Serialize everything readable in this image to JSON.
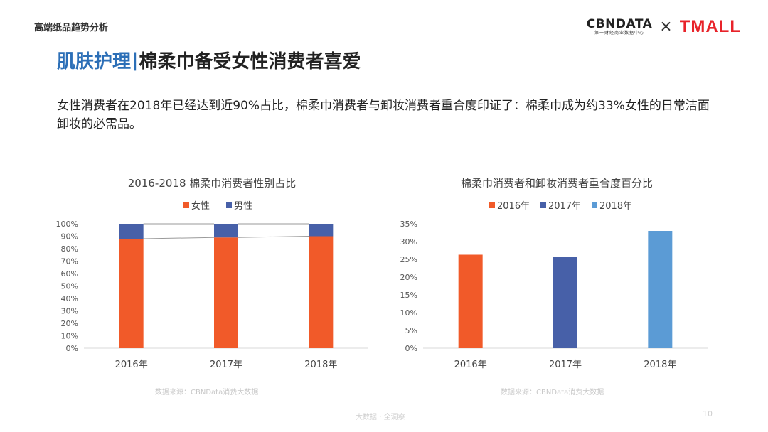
{
  "header": {
    "section": "高端纸品趋势分析",
    "logo_cbn": "CBNDATA",
    "logo_cbn_sub": "第一财经商业数据中心",
    "logo_x": "×",
    "logo_tmall": "TMALL"
  },
  "title": {
    "prefix": "肌肤护理",
    "separator": "|",
    "main": "棉柔巾备受女性消费者喜爱"
  },
  "description": "女性消费者在2018年已经达到近90%占比，棉柔巾消费者与卸妆消费者重合度印证了：棉柔巾成为约33%女性的日常洁面卸妆的必需品。",
  "colors": {
    "orange": "#f15a29",
    "blue_dark": "#4760a8",
    "blue_light": "#5b9bd5",
    "title_blue": "#2c6fb7"
  },
  "chart_data": [
    {
      "type": "bar",
      "stacked": true,
      "title": "2016-2018 棉柔巾消费者性别占比",
      "categories": [
        "2016年",
        "2017年",
        "2018年"
      ],
      "series": [
        {
          "name": "女性",
          "color": "#f15a29",
          "values": [
            88,
            89,
            90
          ]
        },
        {
          "name": "男性",
          "color": "#4760a8",
          "values": [
            12,
            11,
            10
          ]
        }
      ],
      "ylim": [
        0,
        100
      ],
      "y_ticks": [
        "0%",
        "10%",
        "20%",
        "30%",
        "40%",
        "50%",
        "60%",
        "70%",
        "80%",
        "90%",
        "100%"
      ],
      "legend": "top",
      "grid": false,
      "source": "数据来源：CBNData消费大数据"
    },
    {
      "type": "bar",
      "title": "棉柔巾消费者和卸妆消费者重合度百分比",
      "categories": [
        "2016年",
        "2017年",
        "2018年"
      ],
      "values": [
        26.3,
        25.8,
        33
      ],
      "colors": [
        "#f15a29",
        "#4760a8",
        "#5b9bd5"
      ],
      "legend_entries": [
        "2016年",
        "2017年",
        "2018年"
      ],
      "ylim": [
        0,
        35
      ],
      "y_ticks": [
        "0%",
        "5%",
        "10%",
        "15%",
        "20%",
        "25%",
        "30%",
        "35%"
      ],
      "legend": "top",
      "grid": false,
      "source": "数据来源：CBNData消费大数据"
    }
  ],
  "footer": {
    "text": "大数据 · 全洞察",
    "page": "10"
  }
}
